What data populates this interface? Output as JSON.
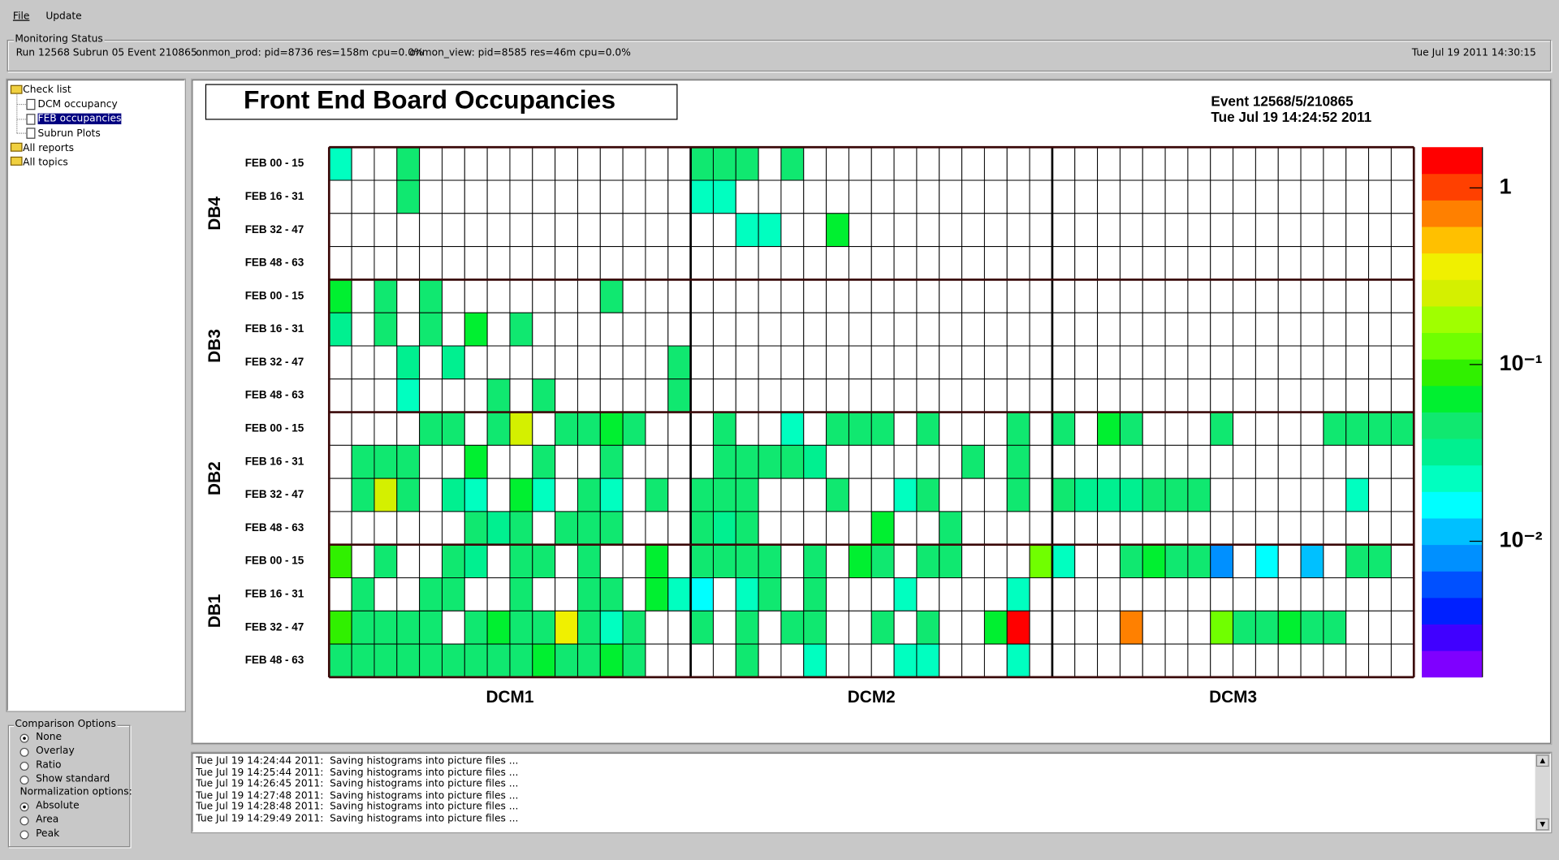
{
  "ui": {
    "menu": [
      "File",
      "Update"
    ],
    "status": {
      "title": "Monitoring Status",
      "run": "Run 12568 Subrun 05 Event 210865",
      "prod": "onmon_prod: pid=8736 res=158m cpu=0.0%",
      "view": "onmon_view: pid=8585 res=46m cpu=0.0%",
      "time": "Tue Jul 19 2011 14:30:15"
    },
    "tree": [
      "Check list",
      "DCM occupancy",
      "FEB occupancies",
      "Subrun Plots",
      "All reports",
      "All topics"
    ],
    "comparison": {
      "title": "Comparison Options",
      "options": [
        "None",
        "Overlay",
        "Ratio",
        "Show standard"
      ],
      "norm_title": "Normalization options:",
      "norm_options": [
        "Absolute",
        "Area",
        "Peak"
      ]
    },
    "log": [
      "Tue Jul 19 14:24:44 2011:  Saving histograms into picture files ...",
      "Tue Jul 19 14:25:44 2011:  Saving histograms into picture files ...",
      "Tue Jul 19 14:26:45 2011:  Saving histograms into picture files ...",
      "Tue Jul 19 14:27:48 2011:  Saving histograms into picture files ...",
      "Tue Jul 19 14:28:48 2011:  Saving histograms into picture files ...",
      "Tue Jul 19 14:29:49 2011:  Saving histograms into picture files ..."
    ]
  },
  "chart_data": {
    "type": "heatmap",
    "title": "Front End Board Occupancies",
    "annotations": [
      "Event 12568/5/210865",
      "Tue Jul 19 14:24:52 2011"
    ],
    "y_groups": [
      "DB4",
      "DB3",
      "DB2",
      "DB1"
    ],
    "x_groups": [
      "DCM1",
      "DCM2",
      "DCM3"
    ],
    "rows": [
      "FEB 00 - 15",
      "FEB 16 - 31",
      "FEB 32 - 47",
      "FEB 48 - 63",
      "FEB 00 - 15",
      "FEB 16 - 31",
      "FEB 32 - 47",
      "FEB 48 - 63",
      "FEB 00 - 15",
      "FEB 16 - 31",
      "FEB 32 - 47",
      "FEB 48 - 63",
      "FEB 00 - 15",
      "FEB 16 - 31",
      "FEB 32 - 47",
      "FEB 48 - 63"
    ],
    "values": [
      [
        0.023,
        null,
        null,
        0.046,
        null,
        null,
        null,
        null,
        null,
        null,
        null,
        null,
        null,
        null,
        null,
        null,
        0.046,
        0.046,
        0.046,
        null,
        0.046,
        null,
        null,
        null,
        null,
        null,
        null,
        null,
        null,
        null,
        null,
        null,
        null,
        null,
        null,
        null,
        null,
        null,
        null,
        null,
        null,
        null,
        null,
        null,
        null,
        null,
        null,
        null
      ],
      [
        null,
        null,
        null,
        0.046,
        null,
        null,
        null,
        null,
        null,
        null,
        null,
        null,
        null,
        null,
        null,
        null,
        0.023,
        0.023,
        null,
        null,
        null,
        null,
        null,
        null,
        null,
        null,
        null,
        null,
        null,
        null,
        null,
        null,
        null,
        null,
        null,
        null,
        null,
        null,
        null,
        null,
        null,
        null,
        null,
        null,
        null,
        null,
        null,
        null
      ],
      [
        null,
        null,
        null,
        null,
        null,
        null,
        null,
        null,
        null,
        null,
        null,
        null,
        null,
        null,
        null,
        null,
        null,
        null,
        0.02,
        0.02,
        null,
        null,
        0.065,
        null,
        null,
        null,
        null,
        null,
        null,
        null,
        null,
        null,
        null,
        null,
        null,
        null,
        null,
        null,
        null,
        null,
        null,
        null,
        null,
        null,
        null,
        null,
        null,
        null
      ],
      [
        null,
        null,
        null,
        null,
        null,
        null,
        null,
        null,
        null,
        null,
        null,
        null,
        null,
        null,
        null,
        null,
        null,
        null,
        null,
        null,
        null,
        null,
        null,
        null,
        null,
        null,
        null,
        null,
        null,
        null,
        null,
        null,
        null,
        null,
        null,
        null,
        null,
        null,
        null,
        null,
        null,
        null,
        null,
        null,
        null,
        null,
        null,
        null
      ],
      [
        0.065,
        null,
        0.046,
        null,
        0.046,
        null,
        null,
        null,
        null,
        null,
        null,
        null,
        0.046,
        null,
        null,
        null,
        null,
        null,
        null,
        null,
        null,
        null,
        null,
        null,
        null,
        null,
        null,
        null,
        null,
        null,
        null,
        null,
        null,
        null,
        null,
        null,
        null,
        null,
        null,
        null,
        null,
        null,
        null,
        null,
        null,
        null,
        null,
        null
      ],
      [
        0.033,
        null,
        0.046,
        null,
        0.046,
        null,
        0.065,
        null,
        0.046,
        null,
        null,
        null,
        null,
        null,
        null,
        null,
        null,
        null,
        null,
        null,
        null,
        null,
        null,
        null,
        null,
        null,
        null,
        null,
        null,
        null,
        null,
        null,
        null,
        null,
        null,
        null,
        null,
        null,
        null,
        null,
        null,
        null,
        null,
        null,
        null,
        null,
        null,
        null
      ],
      [
        null,
        null,
        null,
        0.033,
        null,
        0.033,
        null,
        null,
        null,
        null,
        null,
        null,
        null,
        null,
        null,
        0.046,
        null,
        null,
        null,
        null,
        null,
        null,
        null,
        null,
        null,
        null,
        null,
        null,
        null,
        null,
        null,
        null,
        null,
        null,
        null,
        null,
        null,
        null,
        null,
        null,
        null,
        null,
        null,
        null,
        null,
        null,
        null,
        null
      ],
      [
        null,
        null,
        null,
        0.02,
        null,
        null,
        null,
        0.046,
        null,
        0.046,
        null,
        null,
        null,
        null,
        null,
        0.046,
        null,
        null,
        null,
        null,
        null,
        null,
        null,
        null,
        null,
        null,
        null,
        null,
        null,
        null,
        null,
        null,
        null,
        null,
        null,
        null,
        null,
        null,
        null,
        null,
        null,
        null,
        null,
        null,
        null,
        null,
        null,
        null
      ],
      [
        null,
        null,
        null,
        null,
        0.046,
        0.046,
        null,
        0.046,
        0.22,
        null,
        0.046,
        0.046,
        0.065,
        0.046,
        null,
        null,
        null,
        0.046,
        null,
        null,
        0.023,
        null,
        0.046,
        0.046,
        0.046,
        null,
        0.046,
        null,
        null,
        null,
        0.046,
        null,
        0.046,
        null,
        0.065,
        0.046,
        null,
        null,
        null,
        0.046,
        null,
        null,
        null,
        null,
        0.046,
        0.046,
        0.046,
        0.046
      ],
      [
        null,
        0.046,
        0.046,
        0.046,
        null,
        null,
        0.065,
        null,
        null,
        0.046,
        null,
        null,
        0.046,
        null,
        null,
        null,
        null,
        0.046,
        0.046,
        0.046,
        0.046,
        0.033,
        null,
        null,
        null,
        null,
        null,
        null,
        0.046,
        null,
        0.046,
        null,
        null,
        null,
        null,
        null,
        null,
        null,
        null,
        null,
        null,
        null,
        null,
        null,
        null,
        null,
        null,
        null
      ],
      [
        null,
        0.046,
        0.22,
        0.046,
        null,
        0.033,
        0.023,
        null,
        0.065,
        0.023,
        null,
        0.046,
        0.023,
        null,
        0.046,
        null,
        0.046,
        0.046,
        0.046,
        null,
        null,
        null,
        0.046,
        null,
        null,
        0.023,
        0.046,
        null,
        null,
        null,
        0.046,
        null,
        0.046,
        0.033,
        0.033,
        0.033,
        0.046,
        0.046,
        0.046,
        null,
        null,
        null,
        null,
        null,
        null,
        0.023,
        null,
        null
      ],
      [
        null,
        null,
        null,
        null,
        null,
        null,
        0.046,
        0.033,
        0.046,
        null,
        0.046,
        0.046,
        0.046,
        null,
        null,
        null,
        0.046,
        0.033,
        0.046,
        null,
        null,
        null,
        null,
        null,
        0.065,
        null,
        null,
        0.046,
        null,
        null,
        null,
        null,
        null,
        null,
        null,
        null,
        null,
        null,
        null,
        null,
        null,
        null,
        null,
        null,
        null,
        null,
        null,
        null
      ],
      [
        0.092,
        null,
        0.046,
        null,
        null,
        0.046,
        0.033,
        null,
        0.046,
        0.046,
        null,
        0.046,
        null,
        null,
        0.065,
        null,
        0.046,
        0.046,
        0.046,
        0.046,
        null,
        0.046,
        null,
        0.065,
        0.046,
        null,
        0.046,
        0.046,
        null,
        null,
        null,
        0.13,
        0.023,
        null,
        null,
        0.046,
        0.065,
        0.046,
        0.046,
        0.0082,
        null,
        0.016,
        null,
        0.0116,
        null,
        0.046,
        0.046,
        null
      ],
      [
        null,
        0.046,
        null,
        null,
        0.046,
        0.046,
        null,
        null,
        0.046,
        null,
        null,
        0.046,
        0.046,
        null,
        0.065,
        0.023,
        0.016,
        null,
        0.023,
        0.046,
        null,
        0.046,
        null,
        null,
        null,
        0.023,
        null,
        null,
        null,
        null,
        0.023,
        null,
        null,
        null,
        null,
        null,
        null,
        null,
        null,
        null,
        null,
        null,
        null,
        null,
        null,
        null,
        null,
        null
      ],
      [
        0.092,
        0.046,
        0.046,
        0.046,
        0.046,
        null,
        0.046,
        0.065,
        0.046,
        0.046,
        0.31,
        0.046,
        0.023,
        0.046,
        null,
        null,
        0.046,
        null,
        0.046,
        null,
        0.046,
        0.046,
        null,
        null,
        0.046,
        null,
        0.046,
        null,
        null,
        0.065,
        1.4,
        null,
        null,
        null,
        null,
        0.62,
        null,
        null,
        null,
        0.13,
        0.046,
        0.046,
        0.065,
        0.046,
        0.046,
        null,
        null,
        null
      ],
      [
        0.046,
        0.046,
        0.046,
        0.046,
        0.046,
        0.046,
        0.046,
        0.046,
        0.046,
        0.065,
        0.046,
        0.046,
        0.065,
        0.046,
        null,
        null,
        null,
        null,
        0.046,
        null,
        null,
        0.023,
        null,
        null,
        null,
        0.023,
        0.023,
        null,
        null,
        null,
        0.023,
        null,
        null,
        null,
        null,
        null,
        null,
        null,
        null,
        null,
        null,
        null,
        null,
        null,
        null,
        null,
        null,
        null
      ]
    ],
    "log_scale": true,
    "zlim": [
      0.0017,
      1.7
    ],
    "zticks": [
      {
        "value": 1,
        "label": "1"
      },
      {
        "value": 0.1,
        "label": "10⁻¹"
      },
      {
        "value": 0.01,
        "label": "10⁻²"
      }
    ],
    "colors": [
      "#7f00ff",
      "#4000ff",
      "#0020ff",
      "#0050ff",
      "#0090ff",
      "#00c0ff",
      "#00ffff",
      "#00ffc0",
      "#00f090",
      "#10e870",
      "#00f030",
      "#30f000",
      "#70ff00",
      "#a0ff00",
      "#d4f000",
      "#f0f000",
      "#ffc000",
      "#ff8000",
      "#ff4000",
      "#ff0000"
    ]
  }
}
